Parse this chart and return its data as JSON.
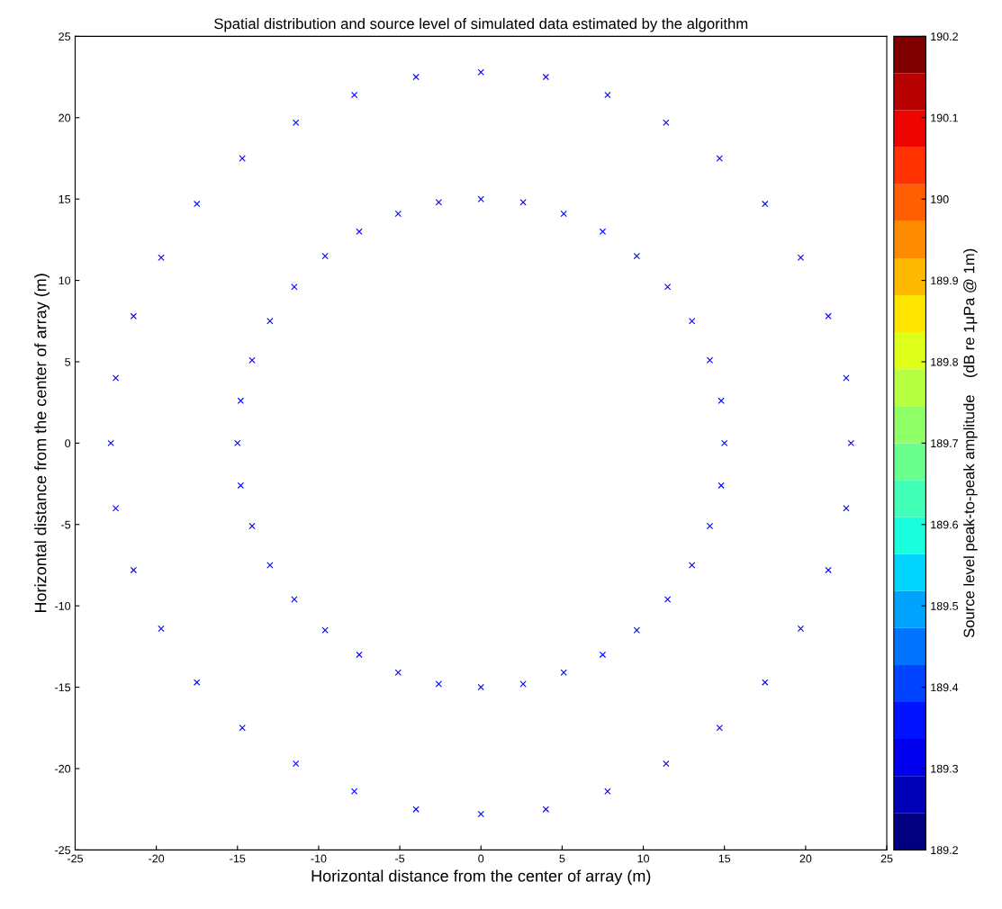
{
  "chart_data": {
    "type": "scatter",
    "title": "Spatial distribution and source level of simulated data estimated by the algorithm",
    "xlabel": "Horizontal distance from the center of array (m)",
    "ylabel": "Horizontal distance from the center of array (m)",
    "clabel": "Source level peak-to-peak amplitude    (dB re 1μPa @ 1m)",
    "xlim": [
      -25,
      25
    ],
    "ylim": [
      -25,
      25
    ],
    "xticks": [
      -25,
      -20,
      -15,
      -10,
      -5,
      0,
      5,
      10,
      15,
      20,
      25
    ],
    "yticks": [
      -25,
      -20,
      -15,
      -10,
      -5,
      0,
      5,
      10,
      15,
      20,
      25
    ],
    "clim": [
      189.2,
      190.2
    ],
    "cticks": [
      189.2,
      189.3,
      189.4,
      189.5,
      189.6,
      189.7,
      189.8,
      189.9,
      190,
      190.1,
      190.2
    ],
    "marker": "cross",
    "grid": false,
    "series": [
      {
        "color": "#0000ff",
        "x": [
          15,
          14.8,
          14.1,
          13.0,
          11.5,
          9.6,
          7.5,
          5.1,
          2.6,
          0,
          -2.6,
          -5.1,
          -7.5,
          -9.6,
          -11.5,
          -13.0,
          -14.1,
          -14.8,
          -15,
          -14.8,
          -14.1,
          -13.0,
          -11.5,
          -9.6,
          -7.5,
          -5.1,
          -2.6,
          0,
          2.6,
          5.1,
          7.5,
          9.6,
          11.5,
          13.0,
          14.1,
          14.8
        ],
        "values": [
          0,
          2.6,
          5.1,
          7.5,
          9.6,
          11.5,
          13.0,
          14.1,
          14.8,
          15,
          14.8,
          14.1,
          13.0,
          11.5,
          9.6,
          7.5,
          5.1,
          2.6,
          0,
          -2.6,
          -5.1,
          -7.5,
          -9.6,
          -11.5,
          -13.0,
          -14.1,
          -14.8,
          -15,
          -14.8,
          -14.1,
          -13.0,
          -11.5,
          -9.6,
          -7.5,
          -5.1,
          -2.6
        ]
      },
      {
        "color": "#0000ff",
        "x": [
          22.8,
          22.5,
          21.4,
          19.7,
          17.5,
          14.7,
          11.4,
          7.8,
          4.0,
          0,
          -4.0,
          -7.8,
          -11.4,
          -14.7,
          -17.5,
          -19.7,
          -21.4,
          -22.5,
          -22.8,
          -22.5,
          -21.4,
          -19.7,
          -17.5,
          -14.7,
          -11.4,
          -7.8,
          -4.0,
          0,
          4.0,
          7.8,
          11.4,
          14.7,
          17.5,
          19.7,
          21.4,
          22.5
        ],
        "values": [
          0,
          4.0,
          7.8,
          11.4,
          14.7,
          17.5,
          19.7,
          21.4,
          22.5,
          22.8,
          22.5,
          21.4,
          19.7,
          17.5,
          14.7,
          11.4,
          7.8,
          4.0,
          0,
          -4.0,
          -7.8,
          -11.4,
          -14.7,
          -17.5,
          -19.7,
          -21.4,
          -22.5,
          -22.8,
          -22.5,
          -21.4,
          -19.7,
          -17.5,
          -14.7,
          -11.4,
          -7.8,
          -4.0
        ]
      }
    ]
  }
}
